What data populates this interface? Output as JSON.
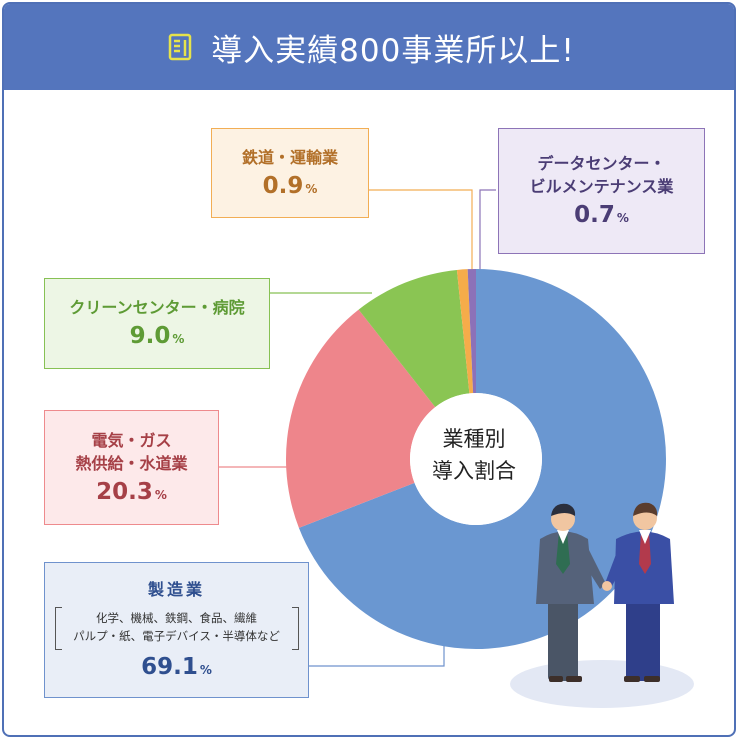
{
  "header": {
    "title": "導入実績800事業所以上!",
    "icon": "document-icon",
    "color": "#5475bd"
  },
  "center": {
    "line1": "業種別",
    "line2": "導入割合"
  },
  "callouts": {
    "manufacturing": {
      "label": "製造業",
      "detail_line1": "化学、機械、鉄鋼、食品、繊維",
      "detail_line2": "パルプ・紙、電子デバイス・半導体など",
      "value": "69.1",
      "unit": "%"
    },
    "electric": {
      "label_line1": "電気・ガス",
      "label_line2": "熱供給・水道業",
      "value": "20.3",
      "unit": "%"
    },
    "clean": {
      "label": "クリーンセンター・病院",
      "value": "9.0",
      "unit": "%"
    },
    "rail": {
      "label": "鉄道・運輸業",
      "value": "0.9",
      "unit": "%"
    },
    "datacenter": {
      "label_line1": "データセンター・",
      "label_line2": "ビルメンテナンス業",
      "value": "0.7",
      "unit": "%"
    }
  },
  "illustration": {
    "name": "business-handshake-illustration"
  },
  "chart_data": {
    "type": "pie",
    "donut": true,
    "title": "業種別 導入割合",
    "start_angle": "top, clockwise",
    "series": [
      {
        "name": "製造業",
        "value": 69.1,
        "color": "#6a97d1"
      },
      {
        "name": "電気・ガス 熱供給・水道業",
        "value": 20.3,
        "color": "#ee858b"
      },
      {
        "name": "クリーンセンター・病院",
        "value": 9.0,
        "color": "#8ac553"
      },
      {
        "name": "鉄道・運輸業",
        "value": 0.9,
        "color": "#f5ac4a"
      },
      {
        "name": "データセンター・ビルメンテナンス業",
        "value": 0.7,
        "color": "#8c71b8"
      }
    ]
  }
}
